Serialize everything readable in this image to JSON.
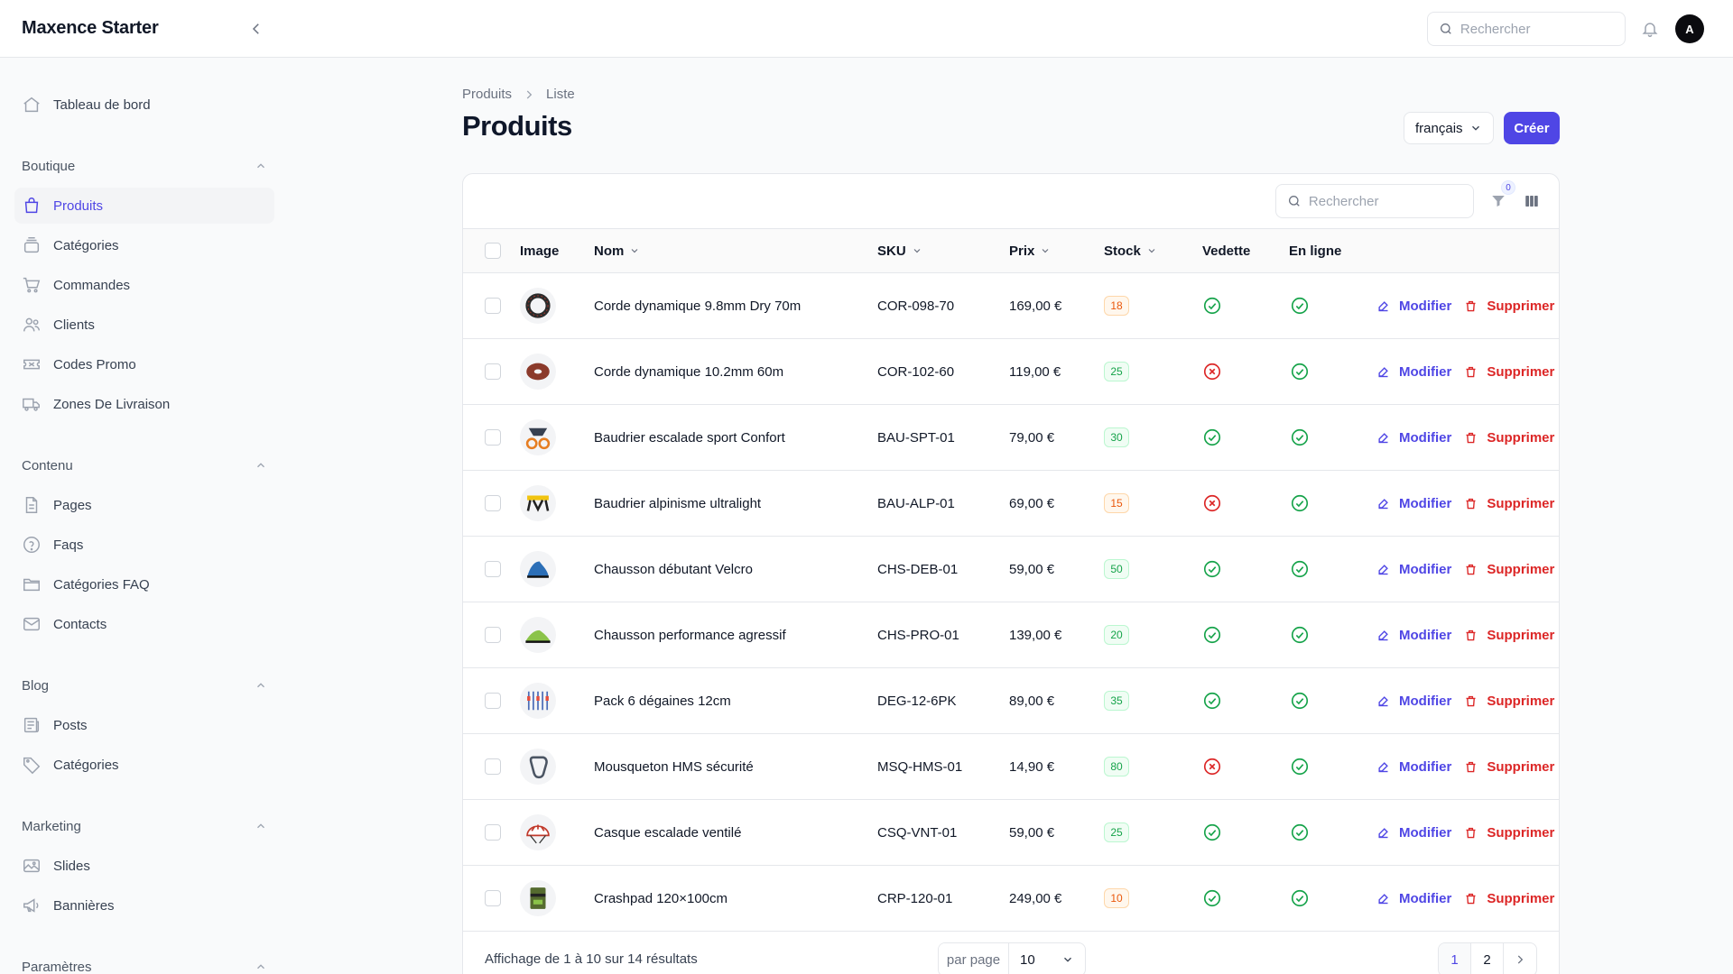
{
  "app": {
    "brand": "Maxence Starter"
  },
  "topbar": {
    "search_placeholder": "Rechercher",
    "avatar_initial": "A"
  },
  "sidebar": {
    "dashboard": "Tableau de bord",
    "groups": [
      {
        "label": "Boutique",
        "items": [
          {
            "label": "Produits",
            "icon": "shopping-bag-icon",
            "active": true
          },
          {
            "label": "Catégories",
            "icon": "stack-icon"
          },
          {
            "label": "Commandes",
            "icon": "cart-icon"
          },
          {
            "label": "Clients",
            "icon": "users-icon"
          },
          {
            "label": "Codes Promo",
            "icon": "ticket-icon"
          },
          {
            "label": "Zones De Livraison",
            "icon": "truck-icon"
          }
        ]
      },
      {
        "label": "Contenu",
        "items": [
          {
            "label": "Pages",
            "icon": "document-icon"
          },
          {
            "label": "Faqs",
            "icon": "question-icon"
          },
          {
            "label": "Catégories FAQ",
            "icon": "folder-icon"
          },
          {
            "label": "Contacts",
            "icon": "envelope-icon"
          }
        ]
      },
      {
        "label": "Blog",
        "items": [
          {
            "label": "Posts",
            "icon": "newspaper-icon"
          },
          {
            "label": "Catégories",
            "icon": "tag-icon"
          }
        ]
      },
      {
        "label": "Marketing",
        "items": [
          {
            "label": "Slides",
            "icon": "image-icon"
          },
          {
            "label": "Bannières",
            "icon": "megaphone-icon"
          }
        ]
      },
      {
        "label": "Paramètres",
        "items": []
      }
    ]
  },
  "main": {
    "breadcrumb": [
      "Produits",
      "Liste"
    ],
    "title": "Produits",
    "locale": "français",
    "create_label": "Créer",
    "table_search_placeholder": "Rechercher",
    "filter_count": "0",
    "columns": {
      "image": "Image",
      "name": "Nom",
      "sku": "SKU",
      "price": "Prix",
      "stock": "Stock",
      "featured": "Vedette",
      "online": "En ligne"
    },
    "actions": {
      "edit": "Modifier",
      "delete": "Supprimer"
    },
    "rows": [
      {
        "name": "Corde dynamique 9.8mm Dry 70m",
        "sku": "COR-098-70",
        "price": "169,00 €",
        "stock": "18",
        "stock_status": "warn",
        "featured": true,
        "online": true,
        "thumb": "rope-black"
      },
      {
        "name": "Corde dynamique 10.2mm 60m",
        "sku": "COR-102-60",
        "price": "119,00 €",
        "stock": "25",
        "stock_status": "ok",
        "featured": false,
        "online": true,
        "thumb": "rope-brown"
      },
      {
        "name": "Baudrier escalade sport Confort",
        "sku": "BAU-SPT-01",
        "price": "79,00 €",
        "stock": "30",
        "stock_status": "ok",
        "featured": true,
        "online": true,
        "thumb": "harness-orange"
      },
      {
        "name": "Baudrier alpinisme ultralight",
        "sku": "BAU-ALP-01",
        "price": "69,00 €",
        "stock": "15",
        "stock_status": "warn",
        "featured": false,
        "online": true,
        "thumb": "harness-yellow"
      },
      {
        "name": "Chausson débutant Velcro",
        "sku": "CHS-DEB-01",
        "price": "59,00 €",
        "stock": "50",
        "stock_status": "ok",
        "featured": true,
        "online": true,
        "thumb": "shoe-blue"
      },
      {
        "name": "Chausson performance agressif",
        "sku": "CHS-PRO-01",
        "price": "139,00 €",
        "stock": "20",
        "stock_status": "ok",
        "featured": true,
        "online": true,
        "thumb": "shoe-green"
      },
      {
        "name": "Pack 6 dégaines 12cm",
        "sku": "DEG-12-6PK",
        "price": "89,00 €",
        "stock": "35",
        "stock_status": "ok",
        "featured": true,
        "online": true,
        "thumb": "quickdraws"
      },
      {
        "name": "Mousqueton HMS sécurité",
        "sku": "MSQ-HMS-01",
        "price": "14,90 €",
        "stock": "80",
        "stock_status": "ok",
        "featured": false,
        "online": true,
        "thumb": "carabiner"
      },
      {
        "name": "Casque escalade ventilé",
        "sku": "CSQ-VNT-01",
        "price": "59,00 €",
        "stock": "25",
        "stock_status": "ok",
        "featured": true,
        "online": true,
        "thumb": "helmet"
      },
      {
        "name": "Crashpad 120×100cm",
        "sku": "CRP-120-01",
        "price": "249,00 €",
        "stock": "10",
        "stock_status": "warn",
        "featured": true,
        "online": true,
        "thumb": "crashpad"
      }
    ],
    "footer": {
      "results": "Affichage de 1 à 10 sur 14 résultats",
      "per_page_label": "par page",
      "per_page_value": "10",
      "pages": [
        "1",
        "2"
      ]
    }
  },
  "colors": {
    "primary": "#4f46e5",
    "danger": "#dc2626",
    "success": "#16a34a",
    "warning": "#ea580c"
  }
}
